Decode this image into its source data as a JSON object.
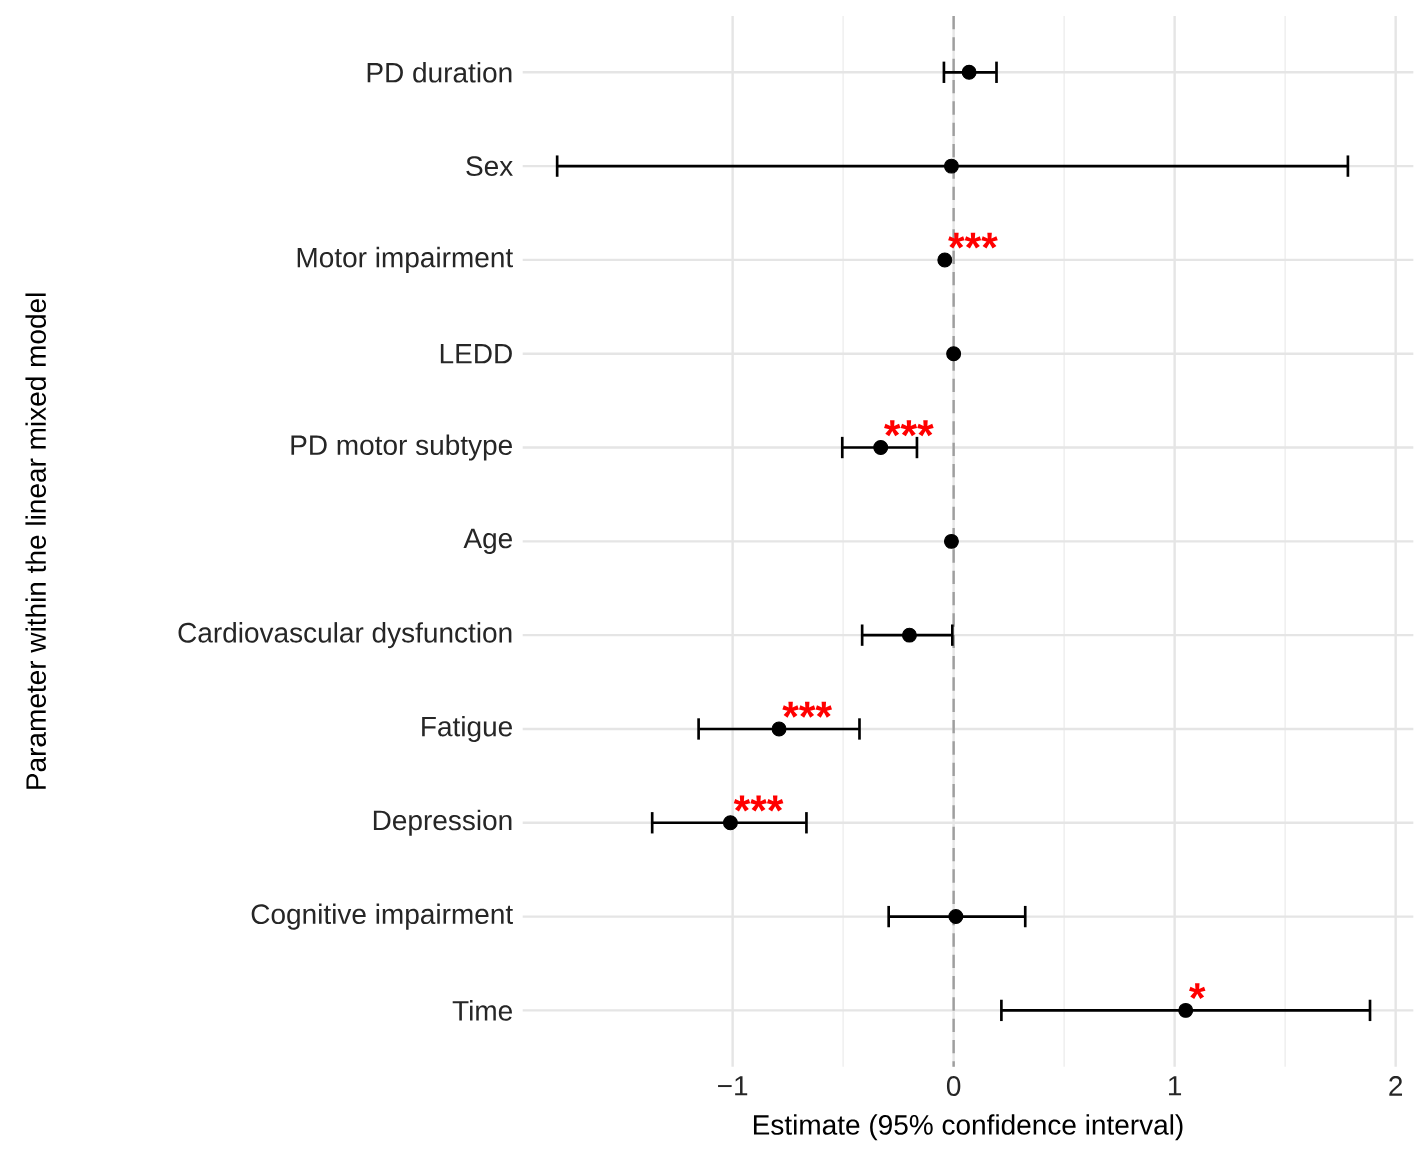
{
  "chart_data": {
    "type": "scatter",
    "orientation": "horizontal",
    "xlabel": "Estimate (95% confidence interval)",
    "ylabel": "Parameter within the linear mixed model",
    "categories": [
      "PD duration",
      "Sex",
      "Motor impairment",
      "LEDD",
      "PD motor subtype",
      "Age",
      "Cardiovascular dysfunction",
      "Fatigue",
      "Depression",
      "Cognitive impairment",
      "Time"
    ],
    "values": [
      0.07,
      -0.01,
      -0.04,
      0.0,
      -0.33,
      -0.01,
      -0.2,
      -0.79,
      -1.01,
      0.01,
      1.05
    ],
    "errors": [
      [
        -0.05,
        0.2
      ],
      [
        -1.8,
        1.79
      ],
      null,
      null,
      [
        -0.51,
        -0.16
      ],
      null,
      [
        -0.42,
        0.0
      ],
      [
        -1.16,
        -0.42
      ],
      [
        -1.37,
        -0.66
      ],
      [
        -0.3,
        0.33
      ],
      [
        0.21,
        1.89
      ]
    ],
    "color": "#000000",
    "marker": "circle",
    "xlim": [
      -1.95,
      2.08
    ],
    "xticks": [
      {
        "value": -1,
        "label": "−1"
      },
      0,
      1,
      2
    ],
    "grid": true,
    "ref_lines": [
      {
        "axis": "x",
        "value": 0,
        "color": "#9e9e9e",
        "line_style": "dashed"
      }
    ],
    "annotations": [
      {
        "text": "***",
        "x": -0.04,
        "y": "Motor impairment"
      },
      {
        "text": "***",
        "x": -0.33,
        "y": "PD motor subtype"
      },
      {
        "text": "***",
        "x": -0.79,
        "y": "Fatigue"
      },
      {
        "text": "***",
        "x": -1.01,
        "y": "Depression"
      },
      {
        "text": "*",
        "x": 1.05,
        "y": "Time"
      }
    ]
  }
}
